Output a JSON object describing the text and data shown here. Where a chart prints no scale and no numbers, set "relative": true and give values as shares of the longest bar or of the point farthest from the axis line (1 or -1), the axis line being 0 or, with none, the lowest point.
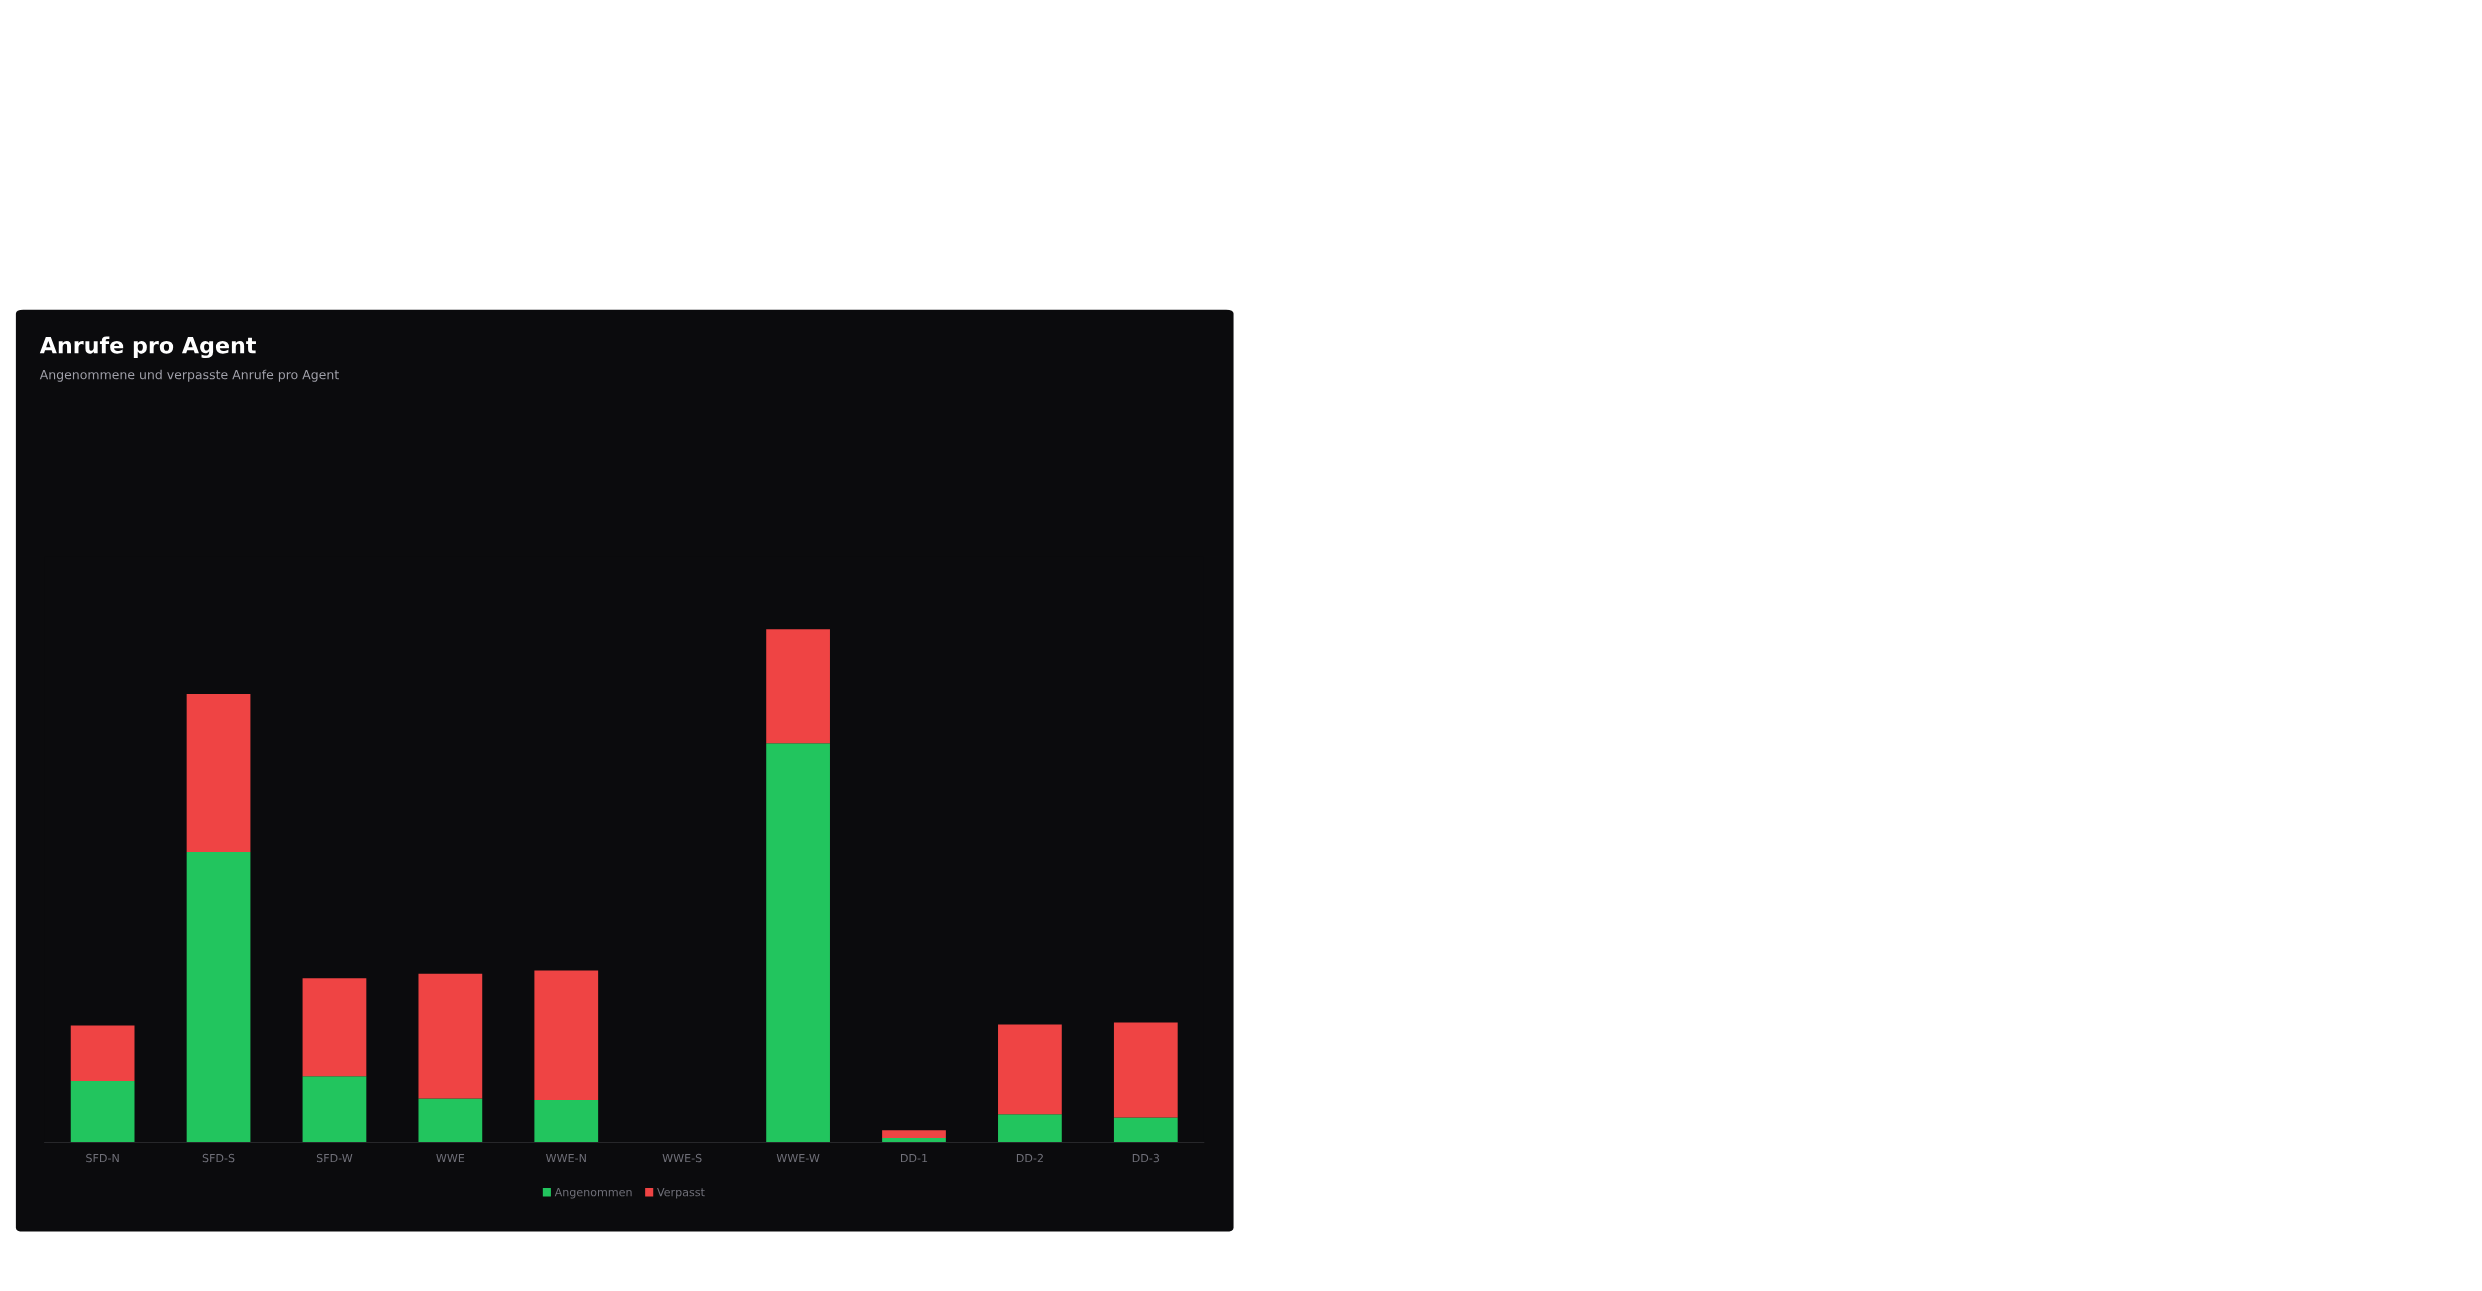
{
  "chart_data": {
    "type": "bar",
    "title": "Anrufe pro Agent",
    "subtitle": "Angenommene und verpasste Anrufe pro Agent",
    "relative": true,
    "stacked": true,
    "legend": "bottom",
    "categories": [
      "SFD-N",
      "SFD-S",
      "SFD-W",
      "WWE",
      "WWE-N",
      "WWE-S",
      "WWE-W",
      "DD-1",
      "DD-2",
      "DD-3"
    ],
    "series": [
      {
        "name": "Angenommen",
        "color": "#22c55e",
        "values": [
          0.12,
          0.566,
          0.129,
          0.086,
          0.083,
          0,
          0.778,
          0.009,
          0.055,
          0.049
        ]
      },
      {
        "name": "Verpasst",
        "color": "#ef4444",
        "values": [
          0.108,
          0.308,
          0.191,
          0.243,
          0.252,
          0,
          0.222,
          0.015,
          0.175,
          0.185
        ]
      }
    ]
  }
}
